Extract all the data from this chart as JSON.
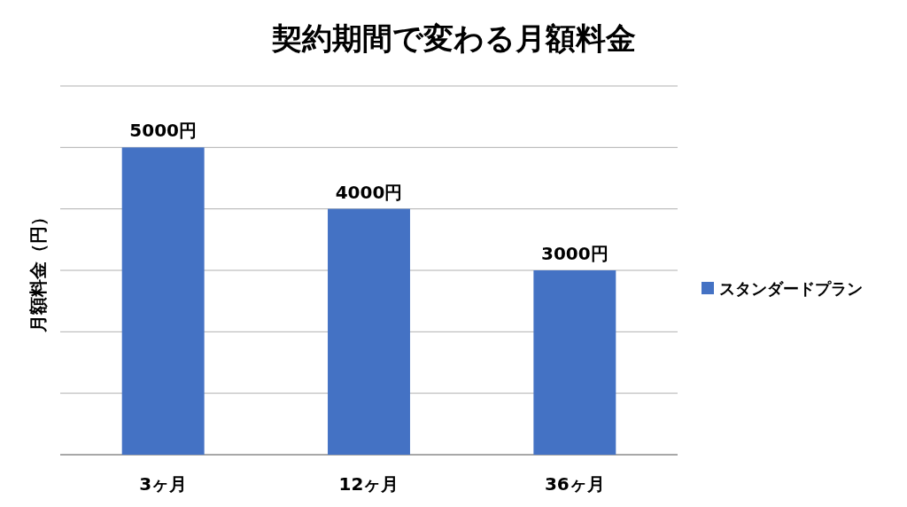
{
  "chart_data": {
    "type": "bar",
    "title": "契約期間で変わる月額料金",
    "ylabel": "月額料金（円）",
    "categories": [
      "3ヶ月",
      "12ヶ月",
      "36ヶ月"
    ],
    "series": [
      {
        "name": "スタンダードプラン",
        "color": "#4472c4",
        "values": [
          5000,
          4000,
          3000
        ],
        "value_labels": [
          "5000円",
          "4000円",
          "3000円"
        ]
      }
    ],
    "ylim": [
      0,
      6000
    ],
    "yticks": [
      {
        "value": 0,
        "label": null
      },
      {
        "value": 1000,
        "label": null
      },
      {
        "value": 2000,
        "label": null
      },
      {
        "value": 3000,
        "label": null
      },
      {
        "value": 4000,
        "label": null
      },
      {
        "value": 5000,
        "label": null
      },
      {
        "value": 6000,
        "label": null
      }
    ],
    "tick_labels": "x",
    "grid": "y",
    "legend": "right"
  }
}
